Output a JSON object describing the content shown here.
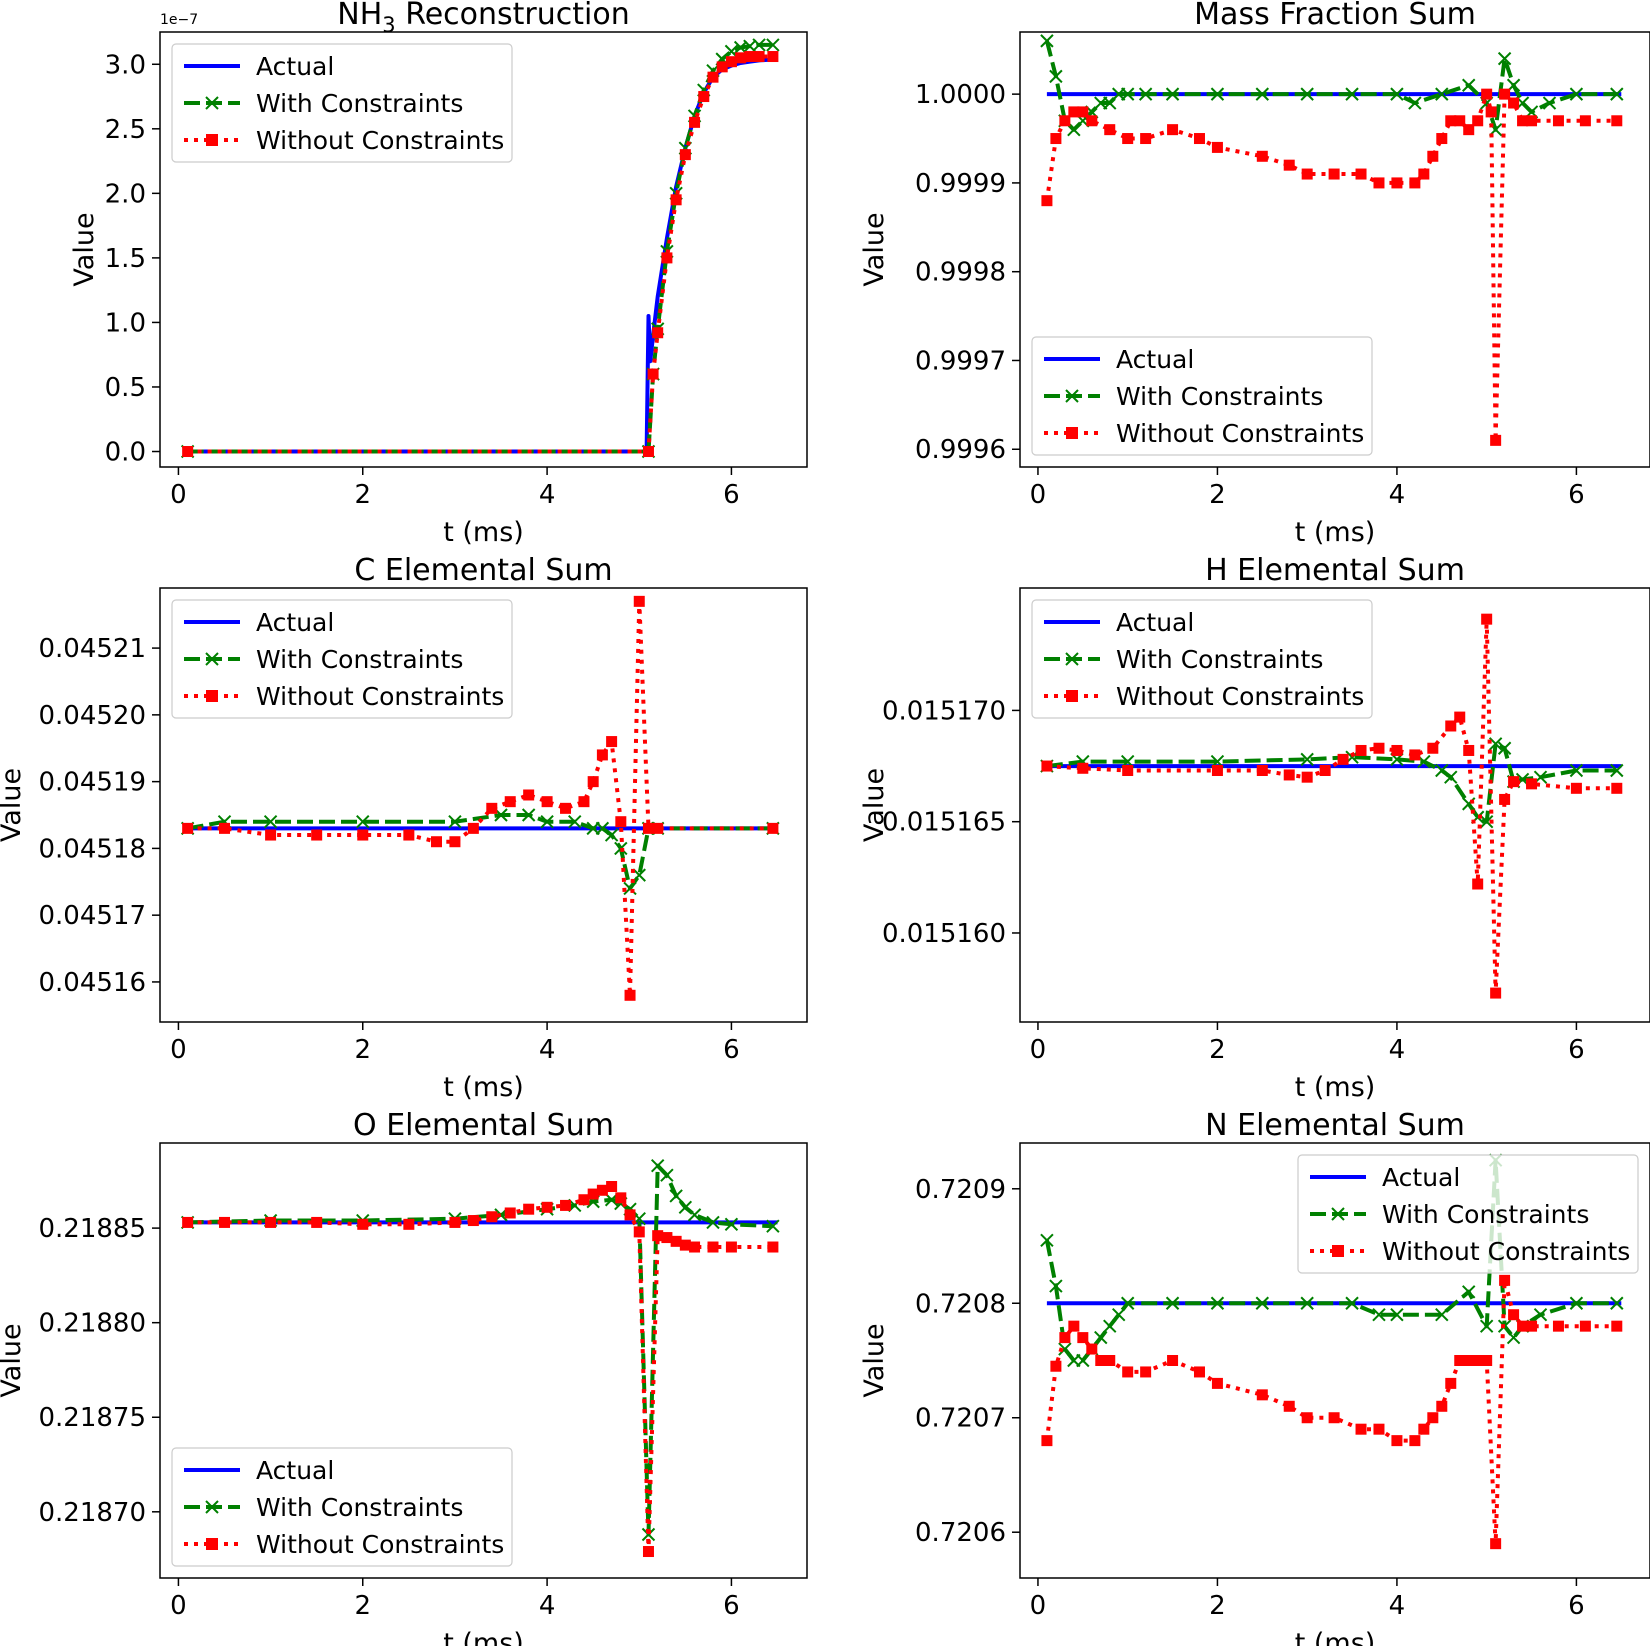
{
  "legend_labels": [
    "Actual",
    "With Constraints",
    "Without Constraints"
  ],
  "colors": {
    "actual": "#0000ff",
    "with": "#008000",
    "without": "#ff0000",
    "axes": "#000000",
    "background": "#ffffff",
    "legend_border": "#cccccc"
  },
  "chart_data": [
    {
      "type": "line",
      "title": "NH3 Reconstruction",
      "title_main": "NH",
      "title_sub": "3",
      "title_rest": " Reconstruction",
      "xlabel": "t (ms)",
      "ylabel": "Value",
      "xlim": [
        -0.2,
        6.82
      ],
      "ylim": [
        -0.12,
        3.25
      ],
      "y_offset_text": "1e−7",
      "xticks": [
        0,
        2,
        4,
        6
      ],
      "xticklabels": [
        "0",
        "2",
        "4",
        "6"
      ],
      "yticks": [
        0.0,
        0.5,
        1.0,
        1.5,
        2.0,
        2.5,
        3.0
      ],
      "yticklabels": [
        "0.0",
        "0.5",
        "1.0",
        "1.5",
        "2.0",
        "2.5",
        "3.0"
      ],
      "legend_position": "upper-left",
      "grid": false,
      "series": [
        {
          "name": "Actual",
          "style": "solid",
          "x": [
            0.1,
            5.08,
            5.1,
            5.12,
            5.15,
            5.2,
            5.3,
            5.4,
            5.5,
            5.6,
            5.7,
            5.8,
            5.9,
            6.0,
            6.1,
            6.2,
            6.3,
            6.5
          ],
          "y": [
            0.0,
            0.0,
            1.05,
            0.7,
            0.9,
            1.2,
            1.65,
            2.05,
            2.35,
            2.6,
            2.78,
            2.9,
            2.96,
            2.99,
            3.01,
            3.02,
            3.03,
            3.04
          ]
        },
        {
          "name": "With Constraints",
          "style": "dashed",
          "x": [
            0.1,
            5.1,
            5.15,
            5.2,
            5.3,
            5.4,
            5.5,
            5.6,
            5.7,
            5.8,
            5.9,
            6.0,
            6.1,
            6.2,
            6.3,
            6.45
          ],
          "y": [
            0.0,
            0.0,
            0.6,
            0.95,
            1.55,
            2.0,
            2.35,
            2.6,
            2.8,
            2.95,
            3.04,
            3.1,
            3.13,
            3.14,
            3.15,
            3.15
          ]
        },
        {
          "name": "Without Constraints",
          "style": "dotted",
          "x": [
            0.1,
            5.1,
            5.15,
            5.2,
            5.3,
            5.4,
            5.5,
            5.6,
            5.7,
            5.8,
            5.9,
            6.0,
            6.1,
            6.2,
            6.3,
            6.45
          ],
          "y": [
            0.0,
            0.0,
            0.6,
            0.92,
            1.5,
            1.95,
            2.3,
            2.55,
            2.75,
            2.9,
            2.98,
            3.02,
            3.05,
            3.06,
            3.06,
            3.06
          ]
        }
      ]
    },
    {
      "type": "line",
      "title": "Mass Fraction Sum",
      "xlabel": "t (ms)",
      "ylabel": "Value",
      "xlim": [
        -0.2,
        6.82
      ],
      "ylim": [
        0.99958,
        1.00007
      ],
      "xticks": [
        0,
        2,
        4,
        6
      ],
      "xticklabels": [
        "0",
        "2",
        "4",
        "6"
      ],
      "yticks": [
        0.9996,
        0.9997,
        0.9998,
        0.9999,
        1.0
      ],
      "yticklabels": [
        "0.9996",
        "0.9997",
        "0.9998",
        "0.9999",
        "1.0000"
      ],
      "legend_position": "lower-left",
      "grid": false,
      "series": [
        {
          "name": "Actual",
          "style": "solid",
          "x": [
            0.1,
            6.5
          ],
          "y": [
            1.0,
            1.0
          ]
        },
        {
          "name": "With Constraints",
          "style": "dashed",
          "x": [
            0.1,
            0.2,
            0.3,
            0.4,
            0.5,
            0.6,
            0.7,
            0.8,
            0.9,
            1.0,
            1.2,
            1.5,
            2.0,
            2.5,
            3.0,
            3.5,
            4.0,
            4.2,
            4.5,
            4.8,
            5.0,
            5.1,
            5.2,
            5.3,
            5.4,
            5.5,
            5.7,
            6.0,
            6.45
          ],
          "y": [
            1.00006,
            1.00002,
            0.99997,
            0.99996,
            0.99997,
            0.99998,
            0.99999,
            0.99999,
            1.0,
            1.0,
            1.0,
            1.0,
            1.0,
            1.0,
            1.0,
            1.0,
            1.0,
            0.99999,
            1.0,
            1.00001,
            0.99999,
            0.99996,
            1.00004,
            1.00001,
            0.99999,
            0.99998,
            0.99999,
            1.0,
            1.0
          ]
        },
        {
          "name": "Without Constraints",
          "style": "dotted",
          "x": [
            0.1,
            0.2,
            0.3,
            0.4,
            0.5,
            0.6,
            0.8,
            1.0,
            1.2,
            1.5,
            1.8,
            2.0,
            2.5,
            2.8,
            3.0,
            3.3,
            3.6,
            3.8,
            4.0,
            4.2,
            4.3,
            4.4,
            4.5,
            4.6,
            4.7,
            4.8,
            4.9,
            5.0,
            5.05,
            5.1,
            5.2,
            5.3,
            5.4,
            5.5,
            5.8,
            6.1,
            6.45
          ],
          "y": [
            0.99988,
            0.99995,
            0.99997,
            0.99998,
            0.99998,
            0.99997,
            0.99996,
            0.99995,
            0.99995,
            0.99996,
            0.99995,
            0.99994,
            0.99993,
            0.99992,
            0.99991,
            0.99991,
            0.99991,
            0.9999,
            0.9999,
            0.9999,
            0.99991,
            0.99993,
            0.99995,
            0.99997,
            0.99997,
            0.99996,
            0.99997,
            1.0,
            0.99998,
            0.99961,
            1.0,
            0.99999,
            0.99997,
            0.99997,
            0.99997,
            0.99997,
            0.99997
          ]
        }
      ]
    },
    {
      "type": "line",
      "title": "C Elemental Sum",
      "xlabel": "t (ms)",
      "ylabel": "Value",
      "xlim": [
        -0.2,
        6.82
      ],
      "ylim": [
        0.045154,
        0.045219
      ],
      "xticks": [
        0,
        2,
        4,
        6
      ],
      "xticklabels": [
        "0",
        "2",
        "4",
        "6"
      ],
      "yticks": [
        0.04516,
        0.04517,
        0.04518,
        0.04519,
        0.0452,
        0.04521
      ],
      "yticklabels": [
        "0.04516",
        "0.04517",
        "0.04518",
        "0.04519",
        "0.04520",
        "0.04521"
      ],
      "legend_position": "upper-left",
      "grid": false,
      "series": [
        {
          "name": "Actual",
          "style": "solid",
          "x": [
            0.1,
            6.5
          ],
          "y": [
            0.045183,
            0.045183
          ]
        },
        {
          "name": "With Constraints",
          "style": "dashed",
          "x": [
            0.1,
            0.5,
            1.0,
            2.0,
            3.0,
            3.5,
            3.8,
            4.0,
            4.3,
            4.5,
            4.6,
            4.7,
            4.8,
            4.9,
            5.0,
            5.1,
            5.2,
            6.45
          ],
          "y": [
            0.045183,
            0.045184,
            0.045184,
            0.045184,
            0.045184,
            0.045185,
            0.045185,
            0.045184,
            0.045184,
            0.045183,
            0.045183,
            0.045182,
            0.04518,
            0.045174,
            0.045176,
            0.045183,
            0.045183,
            0.045183
          ]
        },
        {
          "name": "Without Constraints",
          "style": "dotted",
          "x": [
            0.1,
            0.5,
            1.0,
            1.5,
            2.0,
            2.5,
            2.8,
            3.0,
            3.2,
            3.4,
            3.6,
            3.8,
            4.0,
            4.2,
            4.4,
            4.5,
            4.6,
            4.7,
            4.8,
            4.9,
            5.0,
            5.1,
            5.2,
            6.45
          ],
          "y": [
            0.045183,
            0.045183,
            0.045182,
            0.045182,
            0.045182,
            0.045182,
            0.045181,
            0.045181,
            0.045183,
            0.045186,
            0.045187,
            0.045188,
            0.045187,
            0.045186,
            0.045187,
            0.04519,
            0.045194,
            0.045196,
            0.045184,
            0.045158,
            0.045217,
            0.045183,
            0.045183,
            0.045183
          ]
        }
      ]
    },
    {
      "type": "line",
      "title": "H Elemental Sum",
      "xlabel": "t (ms)",
      "ylabel": "Value",
      "xlim": [
        -0.2,
        6.82
      ],
      "ylim": [
        0.015156,
        0.0151755
      ],
      "xticks": [
        0,
        2,
        4,
        6
      ],
      "xticklabels": [
        "0",
        "2",
        "4",
        "6"
      ],
      "yticks": [
        0.01516,
        0.015165,
        0.01517
      ],
      "yticklabels": [
        "0.015160",
        "0.015165",
        "0.015170"
      ],
      "legend_position": "upper-left",
      "grid": false,
      "series": [
        {
          "name": "Actual",
          "style": "solid",
          "x": [
            0.1,
            6.5
          ],
          "y": [
            0.0151675,
            0.0151675
          ]
        },
        {
          "name": "With Constraints",
          "style": "dashed",
          "x": [
            0.1,
            0.5,
            1.0,
            2.0,
            3.0,
            3.5,
            4.0,
            4.3,
            4.5,
            4.6,
            4.8,
            4.9,
            5.0,
            5.1,
            5.2,
            5.3,
            5.4,
            5.6,
            6.0,
            6.45
          ],
          "y": [
            0.0151675,
            0.0151677,
            0.0151677,
            0.0151677,
            0.0151678,
            0.0151679,
            0.0151678,
            0.0151677,
            0.0151673,
            0.015167,
            0.0151658,
            0.0151652,
            0.015165,
            0.0151685,
            0.0151683,
            0.0151668,
            0.0151669,
            0.015167,
            0.0151673,
            0.0151673
          ]
        },
        {
          "name": "Without Constraints",
          "style": "dotted",
          "x": [
            0.1,
            0.5,
            1.0,
            2.0,
            2.5,
            2.8,
            3.0,
            3.2,
            3.4,
            3.6,
            3.8,
            4.0,
            4.2,
            4.4,
            4.6,
            4.7,
            4.8,
            4.9,
            5.0,
            5.1,
            5.2,
            5.3,
            5.5,
            6.0,
            6.45
          ],
          "y": [
            0.0151675,
            0.0151674,
            0.0151673,
            0.0151673,
            0.0151673,
            0.0151671,
            0.015167,
            0.0151673,
            0.0151678,
            0.0151682,
            0.0151683,
            0.0151682,
            0.015168,
            0.0151683,
            0.0151693,
            0.0151697,
            0.0151682,
            0.0151622,
            0.0151741,
            0.0151573,
            0.015166,
            0.0151668,
            0.0151667,
            0.0151665,
            0.0151665
          ]
        }
      ]
    },
    {
      "type": "line",
      "title": "O Elemental Sum",
      "xlabel": "t (ms)",
      "ylabel": "Value",
      "xlim": [
        -0.2,
        6.82
      ],
      "ylim": [
        0.218665,
        0.218895
      ],
      "xticks": [
        0,
        2,
        4,
        6
      ],
      "xticklabels": [
        "0",
        "2",
        "4",
        "6"
      ],
      "yticks": [
        0.2187,
        0.21875,
        0.2188,
        0.21885
      ],
      "yticklabels": [
        "0.21870",
        "0.21875",
        "0.21880",
        "0.21885"
      ],
      "legend_position": "lower-left",
      "grid": false,
      "series": [
        {
          "name": "Actual",
          "style": "solid",
          "x": [
            0.1,
            6.5
          ],
          "y": [
            0.218853,
            0.218853
          ]
        },
        {
          "name": "With Constraints",
          "style": "dashed",
          "x": [
            0.1,
            1.0,
            2.0,
            3.0,
            3.5,
            4.0,
            4.3,
            4.5,
            4.7,
            4.8,
            4.9,
            5.0,
            5.1,
            5.2,
            5.3,
            5.4,
            5.5,
            5.6,
            5.8,
            6.0,
            6.45
          ],
          "y": [
            0.218853,
            0.218854,
            0.218854,
            0.218855,
            0.218857,
            0.21886,
            0.218862,
            0.218864,
            0.218865,
            0.218863,
            0.21886,
            0.218855,
            0.218688,
            0.218883,
            0.218878,
            0.218867,
            0.218861,
            0.218857,
            0.218853,
            0.218852,
            0.218851
          ]
        },
        {
          "name": "Without Constraints",
          "style": "dotted",
          "x": [
            0.1,
            0.5,
            1.0,
            1.5,
            2.0,
            2.5,
            3.0,
            3.2,
            3.4,
            3.6,
            3.8,
            4.0,
            4.2,
            4.4,
            4.5,
            4.6,
            4.7,
            4.8,
            4.9,
            5.0,
            5.1,
            5.2,
            5.3,
            5.4,
            5.5,
            5.6,
            5.8,
            6.0,
            6.45
          ],
          "y": [
            0.218853,
            0.218853,
            0.218853,
            0.218853,
            0.218852,
            0.218852,
            0.218853,
            0.218854,
            0.218856,
            0.218858,
            0.21886,
            0.218861,
            0.218862,
            0.218865,
            0.218868,
            0.21887,
            0.218872,
            0.218866,
            0.218857,
            0.218848,
            0.218679,
            0.218846,
            0.218845,
            0.218843,
            0.218841,
            0.21884,
            0.21884,
            0.21884,
            0.21884
          ]
        }
      ]
    },
    {
      "type": "line",
      "title": "N Elemental Sum",
      "xlabel": "t (ms)",
      "ylabel": "Value",
      "xlim": [
        -0.2,
        6.82
      ],
      "ylim": [
        0.72056,
        0.72094
      ],
      "xticks": [
        0,
        2,
        4,
        6
      ],
      "xticklabels": [
        "0",
        "2",
        "4",
        "6"
      ],
      "yticks": [
        0.7206,
        0.7207,
        0.7208,
        0.7209
      ],
      "yticklabels": [
        "0.7206",
        "0.7207",
        "0.7208",
        "0.7209"
      ],
      "legend_position": "upper-right",
      "grid": false,
      "series": [
        {
          "name": "Actual",
          "style": "solid",
          "x": [
            0.1,
            6.5
          ],
          "y": [
            0.7208,
            0.7208
          ]
        },
        {
          "name": "With Constraints",
          "style": "dashed",
          "x": [
            0.1,
            0.2,
            0.3,
            0.4,
            0.5,
            0.6,
            0.7,
            0.8,
            0.9,
            1.0,
            1.5,
            2.0,
            2.5,
            3.0,
            3.5,
            3.8,
            4.0,
            4.5,
            4.8,
            5.0,
            5.1,
            5.2,
            5.3,
            5.4,
            5.6,
            6.0,
            6.45
          ],
          "y": [
            0.720855,
            0.720815,
            0.72076,
            0.72075,
            0.72075,
            0.72076,
            0.72077,
            0.72078,
            0.72079,
            0.7208,
            0.7208,
            0.7208,
            0.7208,
            0.7208,
            0.7208,
            0.72079,
            0.72079,
            0.72079,
            0.72081,
            0.72078,
            0.720925,
            0.72078,
            0.72077,
            0.72078,
            0.72079,
            0.7208,
            0.7208
          ]
        },
        {
          "name": "Without Constraints",
          "style": "dotted",
          "x": [
            0.1,
            0.2,
            0.3,
            0.4,
            0.5,
            0.6,
            0.7,
            0.8,
            1.0,
            1.2,
            1.5,
            1.8,
            2.0,
            2.5,
            2.8,
            3.0,
            3.3,
            3.6,
            3.8,
            4.0,
            4.2,
            4.3,
            4.4,
            4.5,
            4.6,
            4.7,
            4.8,
            4.9,
            5.0,
            5.1,
            5.2,
            5.3,
            5.4,
            5.5,
            5.8,
            6.1,
            6.45
          ],
          "y": [
            0.72068,
            0.720745,
            0.72077,
            0.72078,
            0.72077,
            0.72076,
            0.72075,
            0.72075,
            0.72074,
            0.72074,
            0.72075,
            0.72074,
            0.72073,
            0.72072,
            0.72071,
            0.7207,
            0.7207,
            0.72069,
            0.72069,
            0.72068,
            0.72068,
            0.72069,
            0.7207,
            0.72071,
            0.72073,
            0.72075,
            0.72075,
            0.72075,
            0.72075,
            0.72059,
            0.72082,
            0.72079,
            0.72078,
            0.72078,
            0.72078,
            0.72078,
            0.72078
          ]
        }
      ]
    }
  ]
}
